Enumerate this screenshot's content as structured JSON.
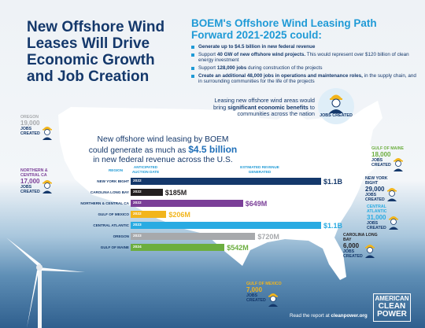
{
  "title": "New Offshore Wind Leases Will Drive Economic Growth and Job Creation",
  "path_title": "BOEM's Offshore Wind Leasing Path Forward 2021-2025 could:",
  "bullets": [
    {
      "bold": "Generate up to $4.5 billion in new federal revenue",
      "rest": ""
    },
    {
      "bold": "",
      "pre": "Support ",
      "bold2": "40 GW of new offshore wind projects.",
      "rest": " This would represent over $120 billion of clean energy investment"
    },
    {
      "bold": "",
      "pre": "Support ",
      "bold2": "128,000 jobs",
      "rest": " during construction of the projects"
    },
    {
      "bold": "Create an additional 48,000 jobs in operations and maintenance roles,",
      "rest": " in the supply chain, and in surrounding communities for the life of the projects"
    }
  ],
  "leasing_note": {
    "pre": "Leasing new offshore wind areas would bring ",
    "bold": "significant economic benefits",
    "post": " to communities across the nation"
  },
  "jobs_created_badge": "JOBS CREATED",
  "main_heading": {
    "line1": "New offshore wind leasing by BOEM",
    "line2_pre": "could generate as much as ",
    "amount": "$4.5 billion",
    "line3": "in new federal revenue across the U.S."
  },
  "column_headers": {
    "region": "REGION",
    "year": "ANTICIPATED AUCTION DATE",
    "revenue": "ESTIMATED REVENUE GENERATED"
  },
  "colors": {
    "navy": "#14386b",
    "sky": "#1f9ad6",
    "purple": "#7b3f98",
    "gold": "#f2b51c",
    "blue": "#29abe2",
    "gray": "#a7a9ac",
    "green": "#6cae3f"
  },
  "chart_data": {
    "type": "bar",
    "orientation": "horizontal",
    "categories": [
      "NEW YORK BIGHT",
      "CAROLINA LONG BAY",
      "NORTHERN & CENTRAL CA",
      "GULF OF MEXICO",
      "CENTRAL ATLANTIC",
      "OREGON",
      "GULF OF MAINE"
    ],
    "years": [
      "2022",
      "2022",
      "2022",
      "2022",
      "2023",
      "2023",
      "2024"
    ],
    "values": [
      1100,
      185,
      649,
      206,
      1100,
      720,
      542
    ],
    "labels": [
      "$1.1B",
      "$185M",
      "$649M",
      "$206M",
      "$1.1B",
      "$720M",
      "$542M"
    ],
    "colors": [
      "#14386b",
      "#231f20",
      "#7b3f98",
      "#f2b51c",
      "#29abe2",
      "#a7a9ac",
      "#6cae3f"
    ],
    "xlim": [
      0,
      1100
    ]
  },
  "job_callouts": [
    {
      "region": "OREGON",
      "jobs": "19,000",
      "label": "JOBS CREATED",
      "color": "#a7a9ac"
    },
    {
      "region": "NORTHERN & CENTRAL CA",
      "jobs": "17,000",
      "label": "JOBS CREATED",
      "color": "#7b3f98"
    },
    {
      "region": "GULF OF MAINE",
      "jobs": "18,000",
      "label": "JOBS CREATED",
      "color": "#6cae3f"
    },
    {
      "region": "NEW YORK BIGHT",
      "jobs": "29,000",
      "label": "JOBS CREATED",
      "color": "#14386b"
    },
    {
      "region": "CENTRAL ATLANTIC",
      "jobs": "31,000",
      "label": "JOBS CREATED",
      "color": "#29abe2"
    },
    {
      "region": "CAROLINA LONG BAY",
      "jobs": "6,000",
      "label": "JOBS CREATED",
      "color": "#231f20"
    },
    {
      "region": "GULF OF MEXICO",
      "jobs": "7,000",
      "label": "JOBS CREATED",
      "color": "#f2b51c"
    }
  ],
  "report": {
    "pre": "Read the report at ",
    "link": "cleanpower.org"
  },
  "logo": {
    "line1": "AMERICAN",
    "line2": "CLEAN",
    "line3": "POWER"
  }
}
